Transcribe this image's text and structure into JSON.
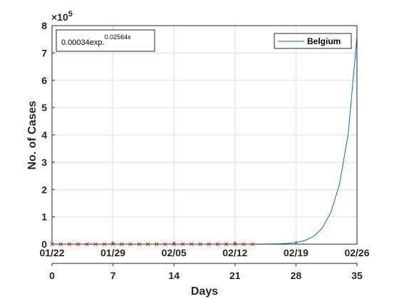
{
  "chart_data": {
    "type": "line",
    "xlabel": "Days",
    "ylabel": "No. of Cases",
    "xlim": [
      0,
      35
    ],
    "ylim": [
      0,
      8
    ],
    "y_exponent": "×10",
    "y_exponent_power": "5",
    "x_ticks": [
      0,
      7,
      14,
      21,
      28,
      35
    ],
    "y_ticks": [
      0,
      1,
      2,
      3,
      4,
      5,
      6,
      7,
      8
    ],
    "date_ticks": [
      {
        "day": 0,
        "label": "01/22"
      },
      {
        "day": 7,
        "label": "01/29"
      },
      {
        "day": 14,
        "label": "02/05"
      },
      {
        "day": 21,
        "label": "02/12"
      },
      {
        "day": 28,
        "label": "02/19"
      },
      {
        "day": 35,
        "label": "02/26"
      }
    ],
    "grid": true,
    "legend_position": "top-right",
    "annotation": {
      "base": "0.00034exp.",
      "power": "0.02564x"
    },
    "series": [
      {
        "name": "Belgium",
        "style": "line",
        "color": "#0072BD",
        "x": [
          0,
          10,
          20,
          23,
          24,
          25,
          26,
          27,
          28,
          29,
          30,
          31,
          32,
          33,
          34,
          35
        ],
        "y": [
          0,
          0,
          0,
          0.0015,
          0.003,
          0.006,
          0.013,
          0.028,
          0.06,
          0.13,
          0.28,
          0.58,
          1.16,
          2.2,
          4.05,
          7.6
        ]
      },
      {
        "style": "markers",
        "marker": "x",
        "color": "#D95319",
        "x": [
          0,
          1,
          2,
          3,
          4,
          5,
          6,
          7,
          8,
          9,
          10,
          11,
          12,
          13,
          14,
          15,
          16,
          17,
          18,
          19,
          20,
          21,
          22,
          23
        ],
        "y": [
          0,
          0,
          0,
          0,
          0,
          0,
          0,
          0,
          0,
          0,
          0,
          0,
          0,
          0,
          0,
          0,
          0,
          0,
          0,
          0,
          0,
          0,
          0,
          0
        ]
      }
    ]
  }
}
